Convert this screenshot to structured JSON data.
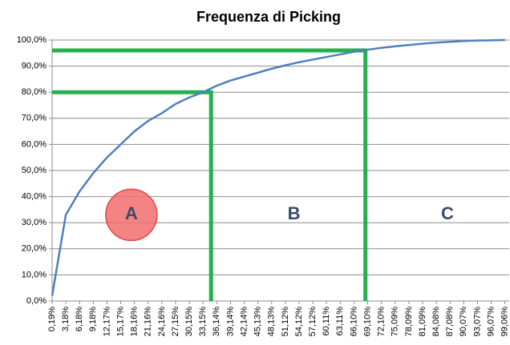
{
  "chart_data": {
    "type": "line",
    "title": "Frequenza di Picking",
    "x": [
      0.19,
      3.18,
      6.18,
      9.18,
      12.17,
      15.17,
      18.16,
      21.16,
      24.16,
      27.15,
      30.15,
      33.15,
      36.14,
      39.14,
      42.14,
      45.13,
      48.13,
      51.12,
      54.12,
      57.12,
      60.11,
      63.11,
      66.1,
      69.1,
      72.1,
      75.09,
      78.09,
      81.09,
      84.08,
      87.08,
      90.07,
      93.07,
      96.07,
      99.06
    ],
    "values": [
      2,
      33,
      42,
      49,
      55,
      60,
      65,
      69,
      72,
      75.5,
      78,
      80,
      82.5,
      84.5,
      86,
      87.5,
      89,
      90.3,
      91.5,
      92.5,
      93.5,
      94.5,
      95.5,
      96.3,
      97,
      97.6,
      98.1,
      98.6,
      99,
      99.3,
      99.6,
      99.8,
      99.9,
      100
    ],
    "color": "#4f7fc0",
    "xlim": [
      0.19,
      100
    ],
    "xticks": [
      {
        "value": 0.19,
        "label": "0,19%"
      },
      {
        "value": 3.18,
        "label": "3,18%"
      },
      {
        "value": 6.18,
        "label": "6,18%"
      },
      {
        "value": 9.18,
        "label": "9,18%"
      },
      {
        "value": 12.17,
        "label": "12,17%"
      },
      {
        "value": 15.17,
        "label": "15,17%"
      },
      {
        "value": 18.16,
        "label": "18,16%"
      },
      {
        "value": 21.16,
        "label": "21,16%"
      },
      {
        "value": 24.16,
        "label": "24,16%"
      },
      {
        "value": 27.15,
        "label": "27,15%"
      },
      {
        "value": 30.15,
        "label": "30,15%"
      },
      {
        "value": 33.15,
        "label": "33,15%"
      },
      {
        "value": 36.14,
        "label": "36,14%"
      },
      {
        "value": 39.14,
        "label": "39,14%"
      },
      {
        "value": 42.14,
        "label": "42,14%"
      },
      {
        "value": 45.13,
        "label": "45,13%"
      },
      {
        "value": 48.13,
        "label": "48,13%"
      },
      {
        "value": 51.12,
        "label": "51,12%"
      },
      {
        "value": 54.12,
        "label": "54,12%"
      },
      {
        "value": 57.12,
        "label": "57,12%"
      },
      {
        "value": 60.11,
        "label": "60,11%"
      },
      {
        "value": 63.11,
        "label": "63,11%"
      },
      {
        "value": 66.1,
        "label": "66,10%"
      },
      {
        "value": 69.1,
        "label": "69,10%"
      },
      {
        "value": 72.1,
        "label": "72,10%"
      },
      {
        "value": 75.09,
        "label": "75,09%"
      },
      {
        "value": 78.09,
        "label": "78,09%"
      },
      {
        "value": 81.09,
        "label": "81,09%"
      },
      {
        "value": 84.08,
        "label": "84,08%"
      },
      {
        "value": 87.08,
        "label": "87,08%"
      },
      {
        "value": 90.07,
        "label": "90,07%"
      },
      {
        "value": 93.07,
        "label": "93,07%"
      },
      {
        "value": 96.07,
        "label": "96,07%"
      },
      {
        "value": 99.06,
        "label": "99,06%"
      }
    ],
    "ylim": [
      0,
      100
    ],
    "yticks": [
      {
        "value": 0,
        "label": "0,0%"
      },
      {
        "value": 10,
        "label": "10,0%"
      },
      {
        "value": 20,
        "label": "20,0%"
      },
      {
        "value": 30,
        "label": "30,0%"
      },
      {
        "value": 40,
        "label": "40,0%"
      },
      {
        "value": 50,
        "label": "50,0%"
      },
      {
        "value": 60,
        "label": "60,0%"
      },
      {
        "value": 70,
        "label": "70,0%"
      },
      {
        "value": 80,
        "label": "80,0%"
      },
      {
        "value": 90,
        "label": "90,0%"
      },
      {
        "value": 100,
        "label": "100,0%"
      }
    ],
    "grid": true,
    "reference_lines": [
      {
        "x": 34.9,
        "y": 80,
        "color": "#22b14c"
      },
      {
        "x": 68.6,
        "y": 96,
        "color": "#22b14c"
      }
    ],
    "annotations": [
      {
        "text": "A",
        "x": 17.5,
        "y": 33,
        "highlight": "#f26d6d"
      },
      {
        "text": "B",
        "x": 53,
        "y": 33
      },
      {
        "text": "C",
        "x": 86.5,
        "y": 33
      }
    ]
  }
}
